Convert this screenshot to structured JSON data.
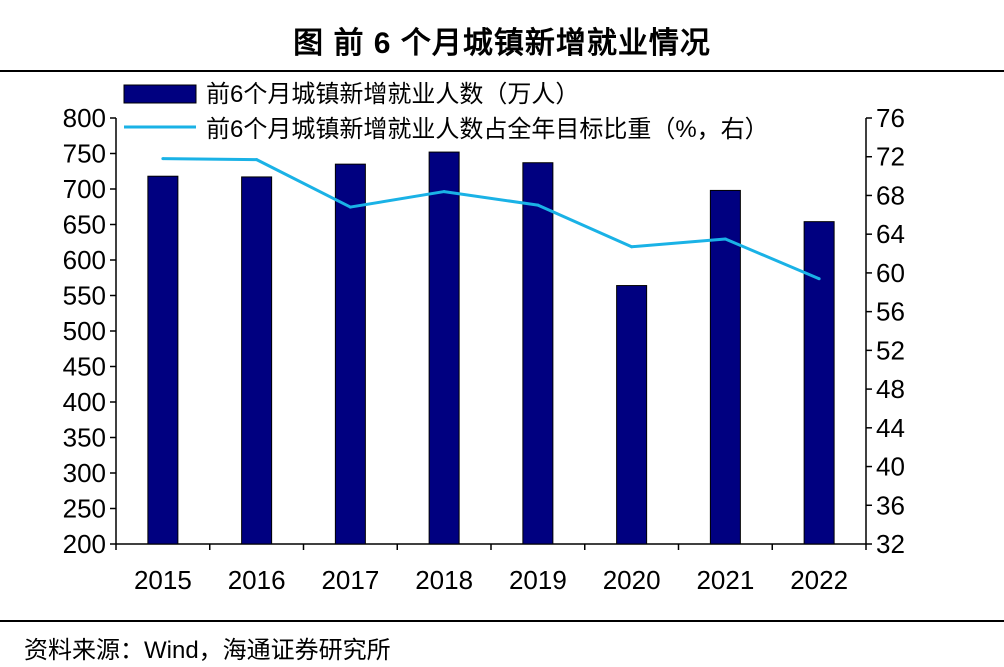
{
  "title": "图  前 6 个月城镇新增就业情况",
  "source": "资料来源：Wind，海通证券研究所",
  "colors": {
    "bar": "#000080",
    "line": "#1AB2E6",
    "axis": "#000000"
  },
  "chart_data": {
    "type": "bar",
    "categories": [
      "2015",
      "2016",
      "2017",
      "2018",
      "2019",
      "2020",
      "2021",
      "2022"
    ],
    "series": [
      {
        "name": "前6个月城镇新增就业人数（万人）",
        "kind": "bar",
        "axis": "left",
        "values": [
          718,
          717,
          735,
          752,
          737,
          564,
          698,
          654
        ]
      },
      {
        "name": "前6个月城镇新增就业人数占全年目标比重（%，右）",
        "kind": "line",
        "axis": "right",
        "values": [
          71.8,
          71.7,
          66.8,
          68.4,
          67.0,
          62.7,
          63.5,
          59.4
        ]
      }
    ],
    "left_axis": {
      "ylim": [
        200,
        800
      ],
      "ticks": [
        200,
        250,
        300,
        350,
        400,
        450,
        500,
        550,
        600,
        650,
        700,
        750,
        800
      ]
    },
    "right_axis": {
      "ylim": [
        32,
        76
      ],
      "ticks": [
        32,
        36,
        40,
        44,
        48,
        52,
        56,
        60,
        64,
        68,
        72,
        76
      ]
    },
    "legend_position": "top-left"
  }
}
